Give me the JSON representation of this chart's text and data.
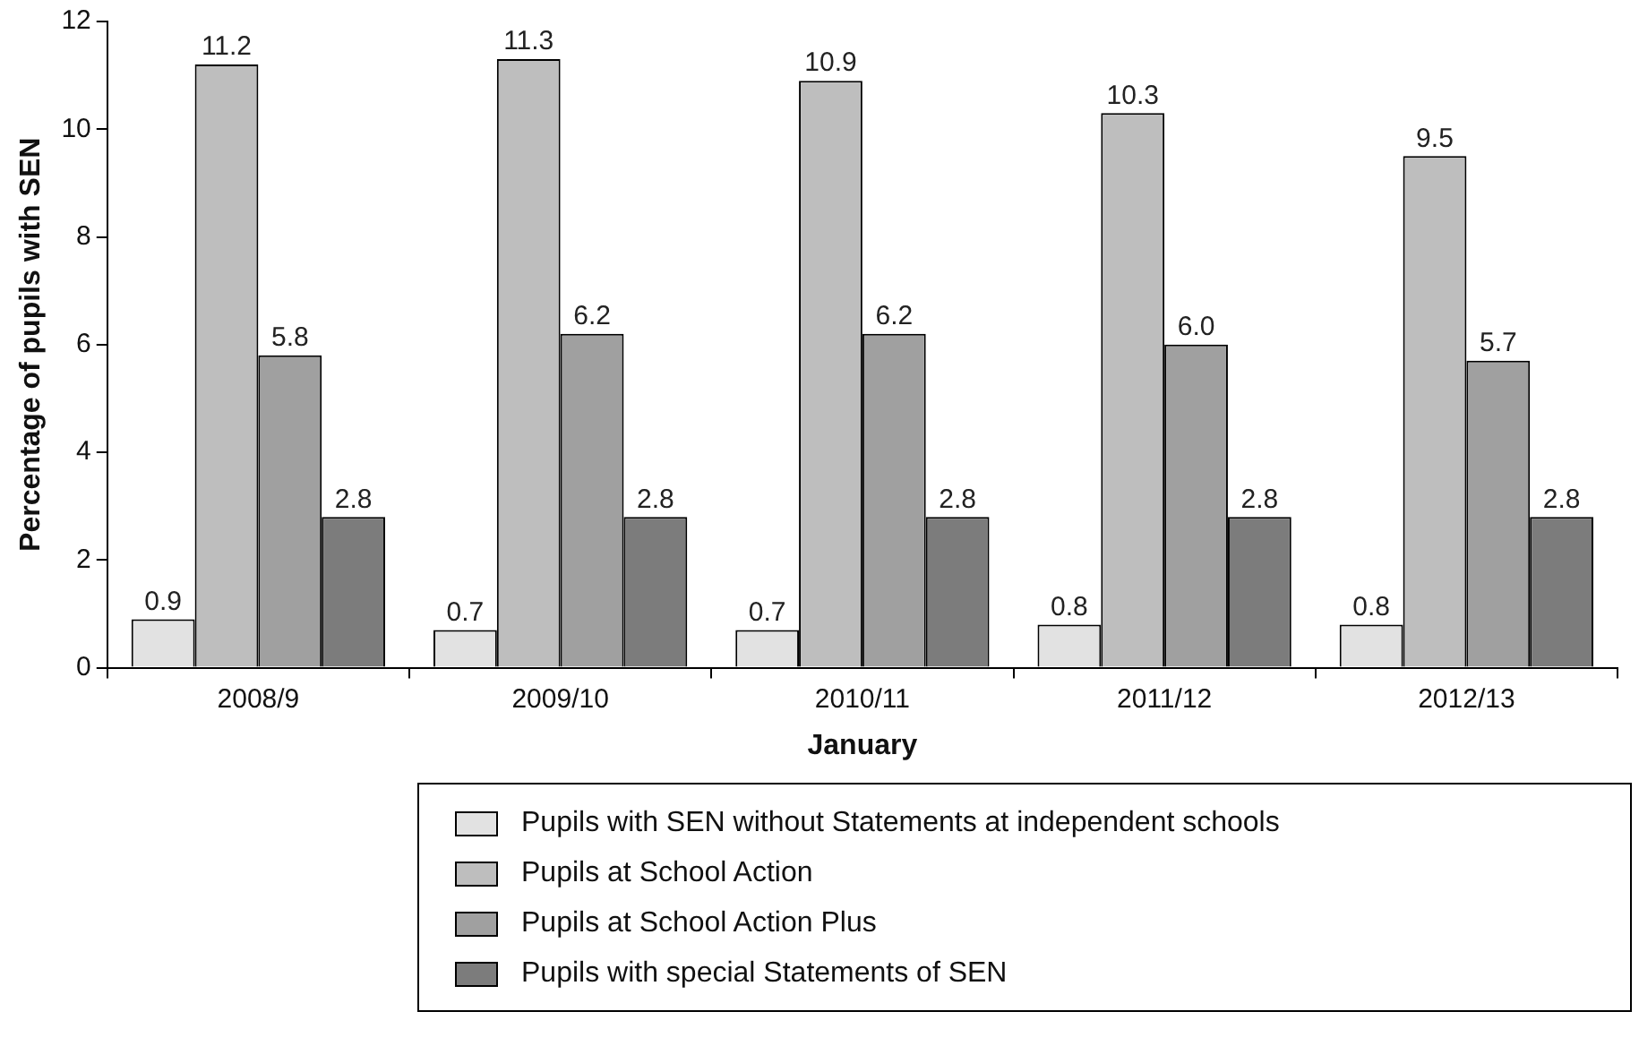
{
  "chart_data": {
    "type": "bar",
    "xlabel": "January",
    "ylabel": "Percentage of pupils with SEN",
    "categories": [
      "2008/9",
      "2009/10",
      "2010/11",
      "2011/12",
      "2012/13"
    ],
    "series": [
      {
        "name": "Pupils with SEN without Statements at independent schools",
        "color": "#e2e2e2",
        "values": [
          0.9,
          0.7,
          0.7,
          0.8,
          0.8
        ],
        "value_labels": [
          "0.9",
          "0.7",
          "0.7",
          "0.8",
          "0.8"
        ]
      },
      {
        "name": "Pupils at School Action",
        "color": "#bebebe",
        "values": [
          11.2,
          11.3,
          10.9,
          10.3,
          9.5
        ],
        "value_labels": [
          "11.2",
          "11.3",
          "10.9",
          "10.3",
          "9.5"
        ]
      },
      {
        "name": "Pupils at School Action Plus",
        "color": "#a0a0a0",
        "values": [
          5.8,
          6.2,
          6.2,
          6.0,
          5.7
        ],
        "value_labels": [
          "5.8",
          "6.2",
          "6.2",
          "6.0",
          "5.7"
        ]
      },
      {
        "name": "Pupils with special Statements of SEN",
        "color": "#7c7c7c",
        "values": [
          2.8,
          2.8,
          2.8,
          2.8,
          2.8
        ],
        "value_labels": [
          "2.8",
          "2.8",
          "2.8",
          "2.8",
          "2.8"
        ]
      }
    ],
    "ylim": [
      0,
      12
    ],
    "yticks": [
      0,
      2,
      4,
      6,
      8,
      10,
      12
    ],
    "grid": false,
    "legend": "bottom"
  }
}
